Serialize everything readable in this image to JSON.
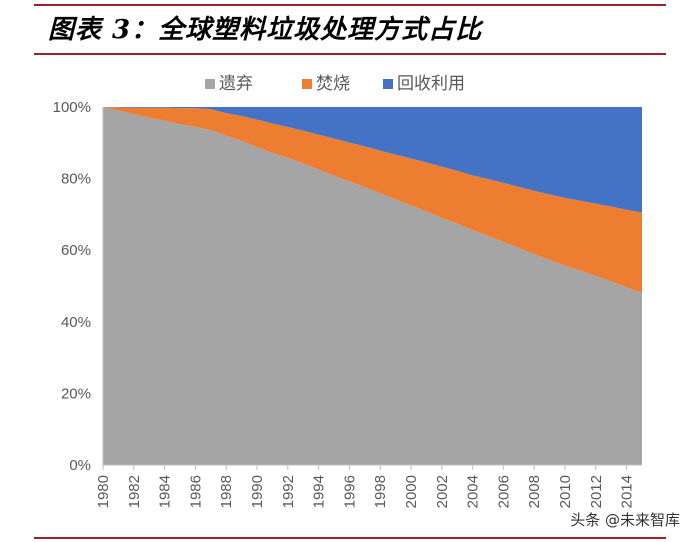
{
  "figure": {
    "title": "图表 3：全球塑料垃圾处理方式占比",
    "watermark": "头条 @未来智库"
  },
  "colors": {
    "discarded": "#a5a5a5",
    "incinerated": "#ed7d31",
    "recycled": "#4472c4",
    "rule": "#9c1f2c"
  },
  "chart_data": {
    "type": "area",
    "stacked": true,
    "title": "图表 3：全球塑料垃圾处理方式占比",
    "xlabel": "",
    "ylabel": "",
    "ylim": [
      0,
      100
    ],
    "y_ticks": [
      0,
      20,
      40,
      60,
      80,
      100
    ],
    "y_tick_labels": [
      "0%",
      "20%",
      "40%",
      "60%",
      "80%",
      "100%"
    ],
    "x_tick_labels": [
      "1980",
      "1982",
      "1984",
      "1986",
      "1988",
      "1990",
      "1992",
      "1994",
      "1996",
      "1998",
      "2000",
      "2002",
      "2004",
      "2006",
      "2008",
      "2010",
      "2012",
      "2014"
    ],
    "legend_position": "top",
    "x": [
      1980,
      1981,
      1982,
      1983,
      1984,
      1985,
      1986,
      1987,
      1988,
      1989,
      1990,
      1991,
      1992,
      1993,
      1994,
      1995,
      1996,
      1997,
      1998,
      1999,
      2000,
      2001,
      2002,
      2003,
      2004,
      2005,
      2006,
      2007,
      2008,
      2009,
      2010,
      2011,
      2012,
      2013,
      2014,
      2015
    ],
    "series": [
      {
        "name": "遗弃",
        "values": [
          100,
          99,
          98,
          97,
          96.2,
          95.2,
          94.5,
          93.5,
          92,
          90.5,
          88.8,
          87.2,
          85.8,
          84.2,
          82.5,
          80.8,
          79.2,
          77.6,
          75.9,
          74.2,
          72.5,
          70.8,
          69.0,
          67.4,
          65.6,
          64.0,
          62.3,
          60.6,
          58.9,
          57.3,
          55.7,
          54.3,
          52.8,
          51.3,
          49.6,
          48.0
        ]
      },
      {
        "name": "焚烧",
        "values": [
          0,
          0.9,
          1.8,
          2.8,
          3.6,
          4.5,
          5.2,
          5.9,
          6.3,
          7.0,
          7.7,
          8.2,
          8.6,
          9.2,
          9.8,
          10.4,
          10.9,
          11.4,
          11.9,
          12.5,
          13.1,
          13.7,
          14.3,
          14.8,
          15.3,
          15.9,
          16.5,
          17.1,
          17.7,
          18.3,
          18.9,
          19.5,
          20.2,
          20.9,
          21.7,
          22.5
        ]
      },
      {
        "name": "回收利用",
        "values": [
          0,
          0.1,
          0.2,
          0.2,
          0.2,
          0.3,
          0.3,
          0.6,
          1.7,
          2.5,
          3.5,
          4.6,
          5.6,
          6.6,
          7.7,
          8.8,
          9.9,
          11.0,
          12.2,
          13.3,
          14.4,
          15.5,
          16.7,
          17.8,
          19.1,
          20.1,
          21.2,
          22.3,
          23.4,
          24.4,
          25.4,
          26.2,
          27.0,
          27.8,
          28.7,
          29.5
        ]
      }
    ]
  }
}
